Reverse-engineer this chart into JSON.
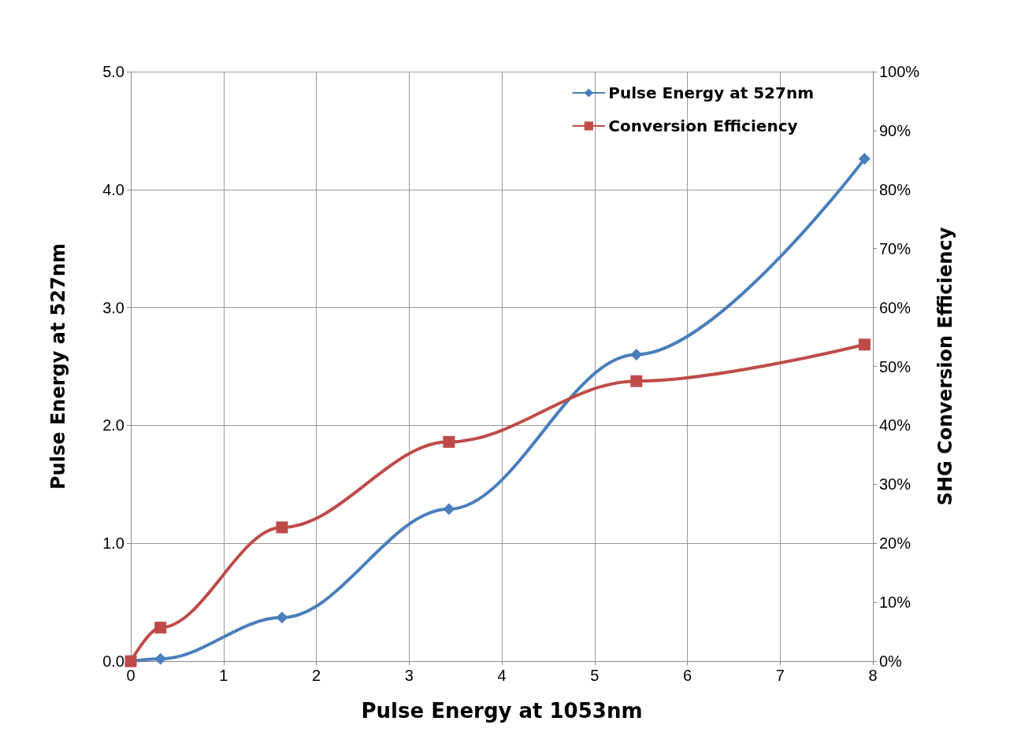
{
  "chart_data": {
    "type": "line",
    "xlabel": "Pulse Energy at 1053nm",
    "ylabel": "Pulse Energy at 527nm",
    "y2label": "SHG Conversion Efficiency",
    "xlim": [
      0,
      8
    ],
    "xticks": [
      0,
      1,
      2,
      3,
      4,
      5,
      6,
      7,
      8
    ],
    "ylim": [
      0,
      5
    ],
    "yticks": [
      {
        "value": 0,
        "label": "0.0"
      },
      {
        "value": 1,
        "label": "1.0"
      },
      {
        "value": 2,
        "label": "2.0"
      },
      {
        "value": 3,
        "label": "3.0"
      },
      {
        "value": 4,
        "label": "4.0"
      },
      {
        "value": 5,
        "label": "5.0"
      }
    ],
    "y2lim": [
      0,
      100
    ],
    "y2ticks": [
      {
        "value": 0,
        "label": "0%"
      },
      {
        "value": 10,
        "label": "10%"
      },
      {
        "value": 20,
        "label": "20%"
      },
      {
        "value": 30,
        "label": "30%"
      },
      {
        "value": 40,
        "label": "40%"
      },
      {
        "value": 50,
        "label": "50%"
      },
      {
        "value": 60,
        "label": "60%"
      },
      {
        "value": 70,
        "label": "70%"
      },
      {
        "value": 80,
        "label": "80%"
      },
      {
        "value": 90,
        "label": "90%"
      },
      {
        "value": 100,
        "label": "100%"
      }
    ],
    "grid": true,
    "legend": "top right",
    "line_style": "solid",
    "series": [
      {
        "name": "Pulse Energy at 527nm",
        "color": "#4a7ebb",
        "marker": "diamond",
        "x": [
          0,
          0.32,
          1.63,
          3.43,
          5.45,
          7.91
        ],
        "values": [
          0,
          0.02,
          0.37,
          1.29,
          2.6,
          4.26
        ]
      },
      {
        "name": "Conversion Efficiency",
        "color": "#be4b48",
        "marker": "square",
        "axis": "y2",
        "x": [
          0,
          0.32,
          1.63,
          3.43,
          5.45,
          7.91
        ],
        "values": [
          0,
          5.7,
          22.7,
          37.2,
          47.5,
          53.7
        ]
      }
    ]
  }
}
